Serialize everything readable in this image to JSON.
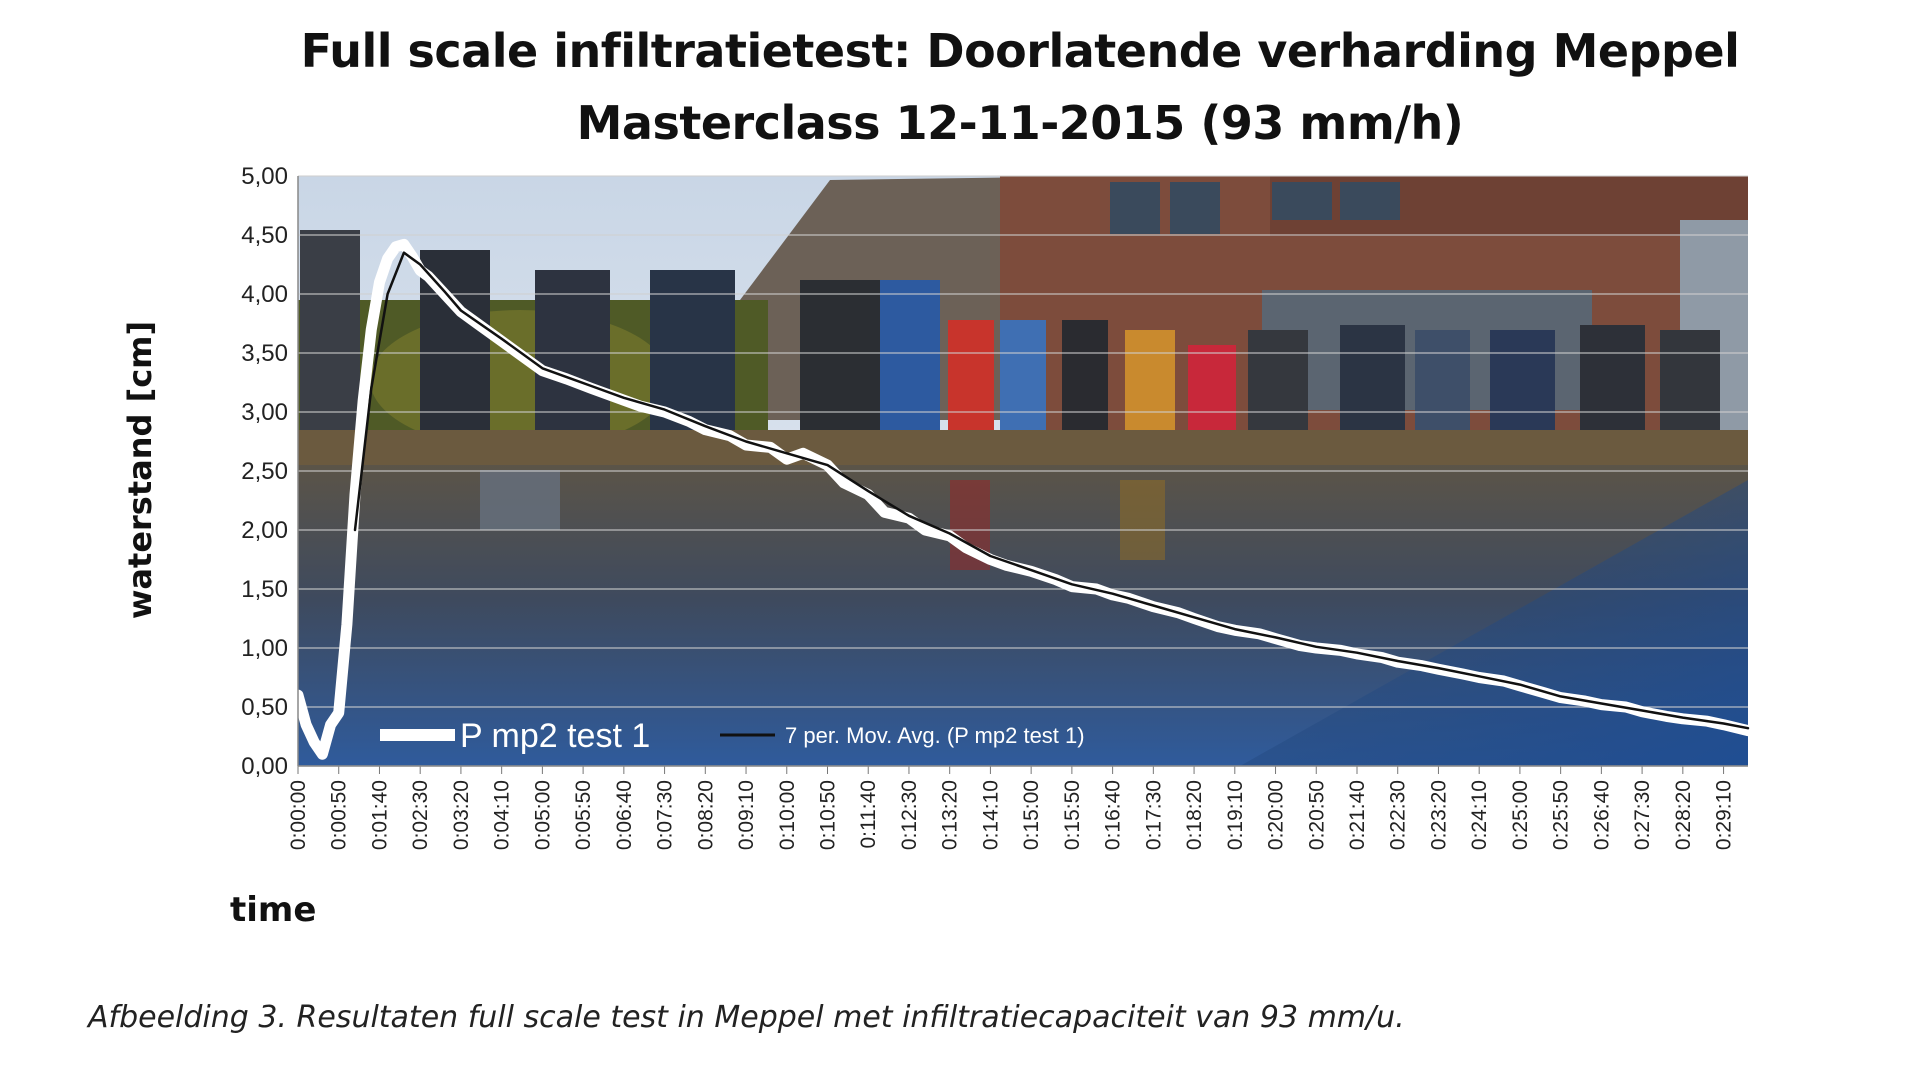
{
  "page": {
    "title_line1": "Full scale infiltratietest: Doorlatende verharding Meppel",
    "title_line2": "Masterclass 12-11-2015 (93 mm/h)",
    "caption": "Afbeelding 3. Resultaten full scale test in Meppel met infiltratiecapaciteit van 93 mm/u."
  },
  "chart_data": {
    "type": "line",
    "title": "Full scale infiltratietest: Doorlatende verharding Meppel\nMasterclass 12-11-2015 (93 mm/h)",
    "xlabel": "time",
    "ylabel": "waterstand [cm]",
    "ylim": [
      0,
      5
    ],
    "y_ticks": [
      "0,00",
      "0,50",
      "1,00",
      "1,50",
      "2,00",
      "2,50",
      "3,00",
      "3,50",
      "4,00",
      "4,50",
      "5,00"
    ],
    "x_ticks": [
      "0:00:00",
      "0:00:50",
      "0:01:40",
      "0:02:30",
      "0:03:20",
      "0:04:10",
      "0:05:00",
      "0:05:50",
      "0:06:40",
      "0:07:30",
      "0:08:20",
      "0:09:10",
      "0:10:00",
      "0:10:50",
      "0:11:40",
      "0:12:30",
      "0:13:20",
      "0:14:10",
      "0:15:00",
      "0:15:50",
      "0:16:40",
      "0:17:30",
      "0:18:20",
      "0:19:10",
      "0:20:00",
      "0:20:50",
      "0:21:40",
      "0:22:30",
      "0:23:20",
      "0:24:10",
      "0:25:00",
      "0:25:50",
      "0:26:40",
      "0:27:30",
      "0:28:20",
      "0:29:10"
    ],
    "grid": true,
    "legend_position": "bottom-left",
    "background": "photograph of a group of people standing on a flooded permeable pavement in front of houses",
    "series": [
      {
        "name": "P mp2 test 1",
        "color": "#ffffff",
        "points": [
          [
            "0:00:00",
            0.6
          ],
          [
            "0:00:10",
            0.35
          ],
          [
            "0:00:20",
            0.2
          ],
          [
            "0:00:30",
            0.1
          ],
          [
            "0:00:40",
            0.35
          ],
          [
            "0:00:50",
            0.45
          ],
          [
            "0:01:00",
            1.2
          ],
          [
            "0:01:10",
            2.3
          ],
          [
            "0:01:20",
            3.1
          ],
          [
            "0:01:30",
            3.7
          ],
          [
            "0:01:40",
            4.1
          ],
          [
            "0:01:50",
            4.3
          ],
          [
            "0:02:00",
            4.4
          ],
          [
            "0:02:10",
            4.42
          ],
          [
            "0:02:20",
            4.32
          ],
          [
            "0:02:30",
            4.2
          ],
          [
            "0:02:40",
            4.15
          ],
          [
            "0:03:00",
            4.0
          ],
          [
            "0:03:20",
            3.85
          ],
          [
            "0:03:40",
            3.75
          ],
          [
            "0:04:10",
            3.6
          ],
          [
            "0:04:40",
            3.45
          ],
          [
            "0:05:00",
            3.35
          ],
          [
            "0:05:30",
            3.28
          ],
          [
            "0:06:00",
            3.2
          ],
          [
            "0:06:40",
            3.1
          ],
          [
            "0:07:00",
            3.05
          ],
          [
            "0:07:30",
            3.0
          ],
          [
            "0:08:00",
            2.92
          ],
          [
            "0:08:20",
            2.85
          ],
          [
            "0:08:50",
            2.8
          ],
          [
            "0:09:10",
            2.72
          ],
          [
            "0:09:40",
            2.7
          ],
          [
            "0:10:00",
            2.6
          ],
          [
            "0:10:20",
            2.65
          ],
          [
            "0:10:50",
            2.55
          ],
          [
            "0:11:10",
            2.4
          ],
          [
            "0:11:40",
            2.3
          ],
          [
            "0:12:00",
            2.15
          ],
          [
            "0:12:30",
            2.1
          ],
          [
            "0:12:50",
            2.0
          ],
          [
            "0:13:20",
            1.95
          ],
          [
            "0:13:40",
            1.85
          ],
          [
            "0:14:10",
            1.75
          ],
          [
            "0:14:30",
            1.7
          ],
          [
            "0:15:00",
            1.65
          ],
          [
            "0:15:30",
            1.58
          ],
          [
            "0:15:50",
            1.52
          ],
          [
            "0:16:20",
            1.5
          ],
          [
            "0:16:40",
            1.45
          ],
          [
            "0:17:00",
            1.42
          ],
          [
            "0:17:30",
            1.35
          ],
          [
            "0:18:00",
            1.3
          ],
          [
            "0:18:20",
            1.25
          ],
          [
            "0:18:50",
            1.18
          ],
          [
            "0:19:10",
            1.15
          ],
          [
            "0:19:40",
            1.12
          ],
          [
            "0:20:00",
            1.08
          ],
          [
            "0:20:30",
            1.02
          ],
          [
            "0:20:50",
            1.0
          ],
          [
            "0:21:20",
            0.98
          ],
          [
            "0:21:40",
            0.95
          ],
          [
            "0:22:10",
            0.92
          ],
          [
            "0:22:30",
            0.88
          ],
          [
            "0:23:00",
            0.85
          ],
          [
            "0:23:20",
            0.82
          ],
          [
            "0:23:50",
            0.78
          ],
          [
            "0:24:10",
            0.75
          ],
          [
            "0:24:40",
            0.72
          ],
          [
            "0:25:00",
            0.68
          ],
          [
            "0:25:30",
            0.62
          ],
          [
            "0:25:50",
            0.58
          ],
          [
            "0:26:20",
            0.55
          ],
          [
            "0:26:40",
            0.52
          ],
          [
            "0:27:10",
            0.5
          ],
          [
            "0:27:30",
            0.46
          ],
          [
            "0:28:00",
            0.42
          ],
          [
            "0:28:20",
            0.4
          ],
          [
            "0:28:50",
            0.38
          ],
          [
            "0:29:10",
            0.35
          ],
          [
            "0:29:40",
            0.3
          ]
        ]
      },
      {
        "name": "7 per. Mov. Avg. (P mp2 test 1)",
        "color": "#111111",
        "points": [
          [
            "0:01:10",
            2.0
          ],
          [
            "0:01:30",
            3.2
          ],
          [
            "0:01:50",
            4.0
          ],
          [
            "0:02:10",
            4.35
          ],
          [
            "0:02:30",
            4.25
          ],
          [
            "0:03:00",
            4.02
          ],
          [
            "0:03:20",
            3.86
          ],
          [
            "0:04:10",
            3.62
          ],
          [
            "0:05:00",
            3.37
          ],
          [
            "0:06:00",
            3.22
          ],
          [
            "0:06:40",
            3.12
          ],
          [
            "0:07:30",
            3.02
          ],
          [
            "0:08:20",
            2.88
          ],
          [
            "0:09:10",
            2.75
          ],
          [
            "0:10:00",
            2.65
          ],
          [
            "0:10:50",
            2.55
          ],
          [
            "0:11:40",
            2.33
          ],
          [
            "0:12:30",
            2.12
          ],
          [
            "0:13:20",
            1.97
          ],
          [
            "0:14:10",
            1.78
          ],
          [
            "0:15:00",
            1.66
          ],
          [
            "0:15:50",
            1.54
          ],
          [
            "0:16:40",
            1.46
          ],
          [
            "0:17:30",
            1.36
          ],
          [
            "0:18:20",
            1.26
          ],
          [
            "0:19:10",
            1.16
          ],
          [
            "0:20:00",
            1.09
          ],
          [
            "0:20:50",
            1.01
          ],
          [
            "0:21:40",
            0.96
          ],
          [
            "0:22:30",
            0.89
          ],
          [
            "0:23:20",
            0.83
          ],
          [
            "0:24:10",
            0.76
          ],
          [
            "0:25:00",
            0.69
          ],
          [
            "0:25:50",
            0.59
          ],
          [
            "0:26:40",
            0.53
          ],
          [
            "0:27:30",
            0.47
          ],
          [
            "0:28:20",
            0.41
          ],
          [
            "0:29:10",
            0.36
          ],
          [
            "0:29:40",
            0.32
          ]
        ]
      }
    ]
  }
}
